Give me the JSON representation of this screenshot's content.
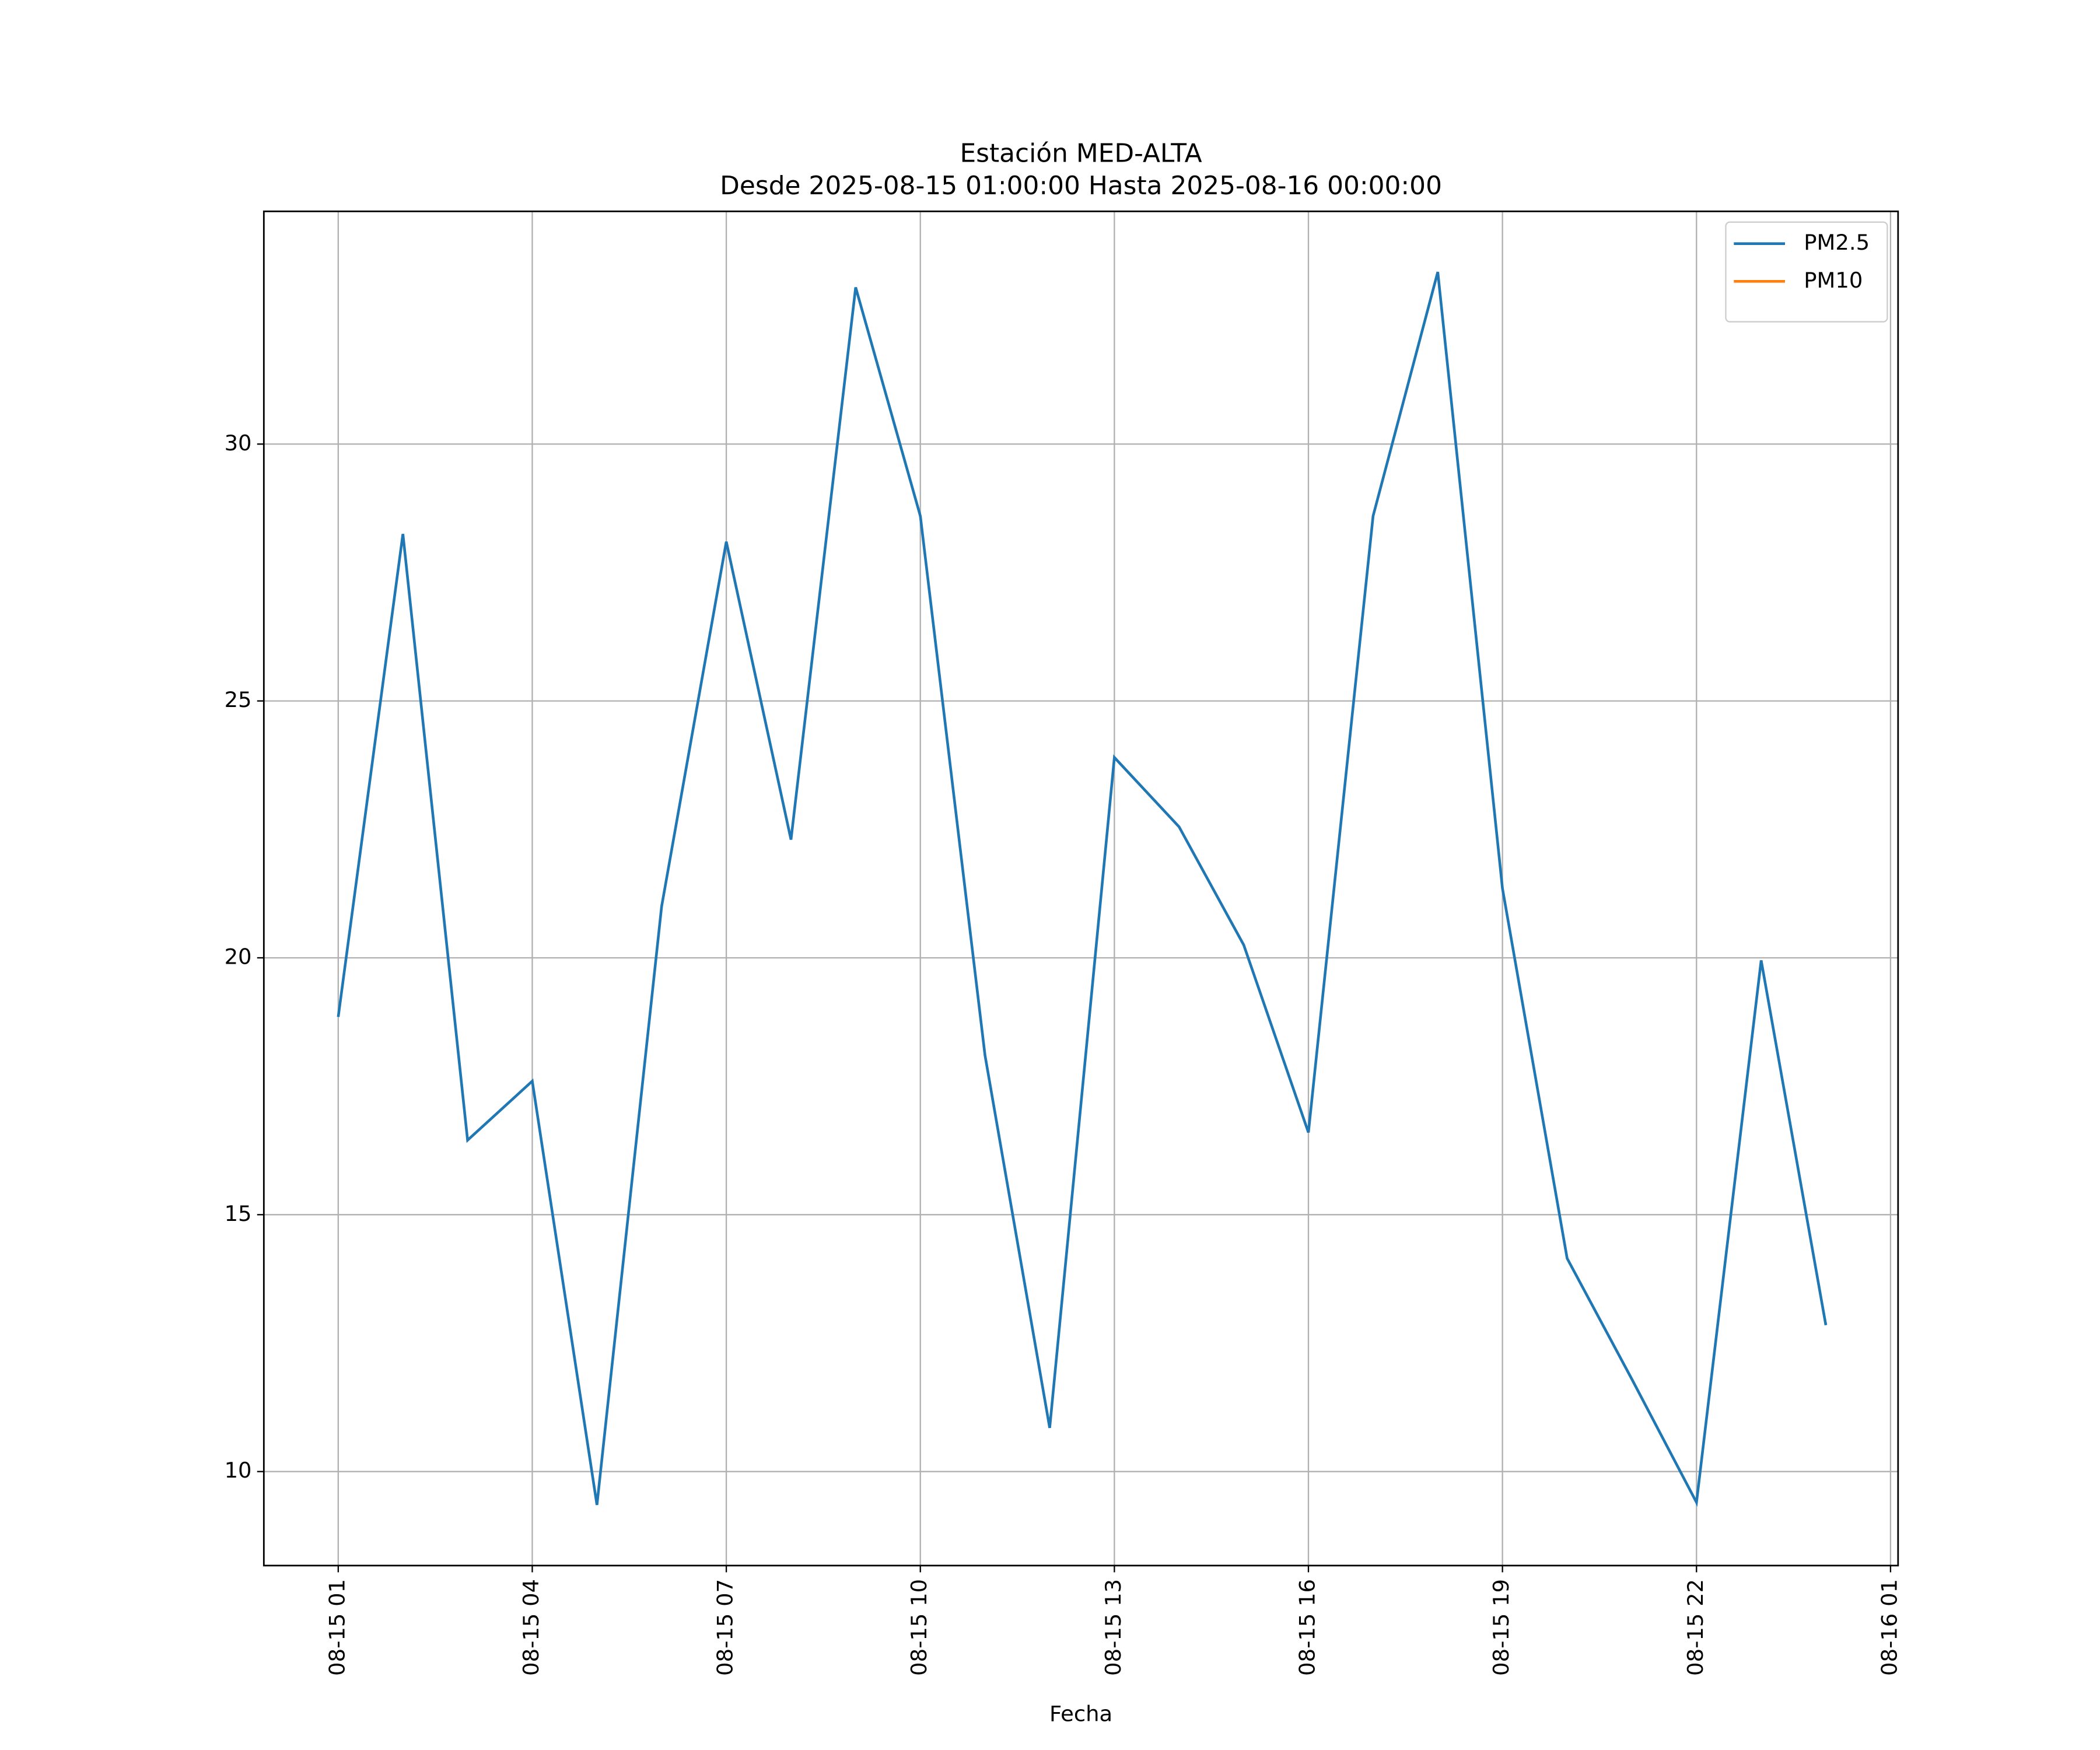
{
  "chart_data": {
    "type": "line",
    "title": "Estación MED-ALTA",
    "subtitle": "Desde 2025-08-15 01:00:00 Hasta 2025-08-16 00:00:00",
    "xlabel": "Fecha",
    "x": [
      "08-15 01",
      "08-15 02",
      "08-15 03",
      "08-15 04",
      "08-15 05",
      "08-15 06",
      "08-15 07",
      "08-15 08",
      "08-15 09",
      "08-15 10",
      "08-15 11",
      "08-15 12",
      "08-15 13",
      "08-15 14",
      "08-15 15",
      "08-15 16",
      "08-15 17",
      "08-15 18",
      "08-15 19",
      "08-15 20",
      "08-15 21",
      "08-15 22",
      "08-15 23",
      "08-16 00"
    ],
    "series": [
      {
        "name": "PM2.5",
        "color": "#1f77b4",
        "values": [
          18.85,
          28.25,
          16.45,
          17.6,
          9.35,
          21.0,
          28.1,
          22.3,
          33.05,
          28.6,
          18.1,
          10.85,
          23.9,
          22.55,
          20.25,
          16.6,
          28.6,
          33.35,
          21.35,
          14.15,
          11.8,
          9.4,
          19.95,
          12.85
        ]
      },
      {
        "name": "PM10",
        "color": "#ff7f0e",
        "values": [
          null,
          null,
          null,
          null,
          null,
          null,
          null,
          null,
          null,
          null,
          null,
          null,
          null,
          null,
          null,
          null,
          null,
          null,
          null,
          null,
          null,
          null,
          null,
          null
        ]
      }
    ],
    "xlim": [
      "08-14 23:51",
      "08-16 01:07"
    ],
    "xticks": [
      "08-15 01",
      "08-15 04",
      "08-15 07",
      "08-15 10",
      "08-15 13",
      "08-15 16",
      "08-15 19",
      "08-15 22",
      "08-16 01"
    ],
    "ylim": [
      8.17,
      34.53
    ],
    "yticks": [
      10,
      15,
      20,
      25,
      30
    ],
    "grid": true,
    "legend": "upper right"
  }
}
